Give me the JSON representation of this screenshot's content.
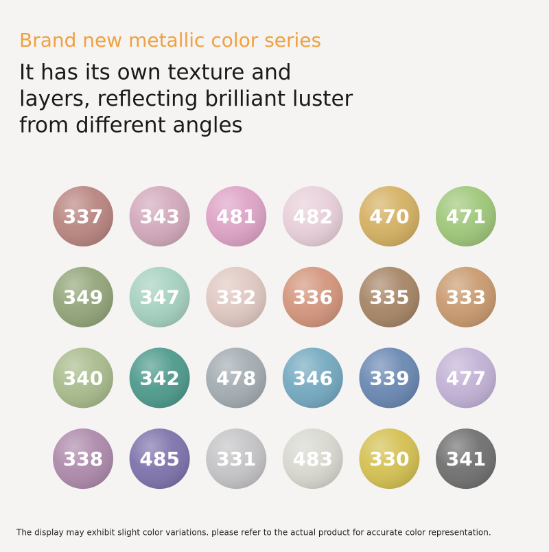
{
  "header": {
    "title": "Brand new metallic color series",
    "subtitle": [
      "It has its own texture and",
      "layers, reflecting brilliant luster",
      "from different angles"
    ]
  },
  "swatches": [
    [
      {
        "label": "337",
        "color": "#b98580"
      },
      {
        "label": "343",
        "color": "#d2a9bb"
      },
      {
        "label": "481",
        "color": "#dda3c6"
      },
      {
        "label": "482",
        "color": "#e8cfd9"
      },
      {
        "label": "470",
        "color": "#d4b062"
      },
      {
        "label": "471",
        "color": "#9fc77a"
      }
    ],
    [
      {
        "label": "349",
        "color": "#93a57a"
      },
      {
        "label": "347",
        "color": "#a6d1c0"
      },
      {
        "label": "332",
        "color": "#e0c8c2"
      },
      {
        "label": "336",
        "color": "#d3957c"
      },
      {
        "label": "335",
        "color": "#a68566"
      },
      {
        "label": "333",
        "color": "#c99a6f"
      }
    ],
    [
      {
        "label": "340",
        "color": "#a9bb8c"
      },
      {
        "label": "342",
        "color": "#4e9a8c"
      },
      {
        "label": "478",
        "color": "#a3acb2"
      },
      {
        "label": "346",
        "color": "#74a9c0"
      },
      {
        "label": "339",
        "color": "#6a88b2"
      },
      {
        "label": "477",
        "color": "#c2b2d6"
      }
    ],
    [
      {
        "label": "338",
        "color": "#ad8aab"
      },
      {
        "label": "485",
        "color": "#7e73ac"
      },
      {
        "label": "331",
        "color": "#c4c4c6"
      },
      {
        "label": "483",
        "color": "#d8d8d0"
      },
      {
        "label": "330",
        "color": "#d4c052"
      },
      {
        "label": "341",
        "color": "#707070"
      }
    ]
  ],
  "footer": "The display may exhibit slight color variations. please refer to the actual product for accurate color representation."
}
